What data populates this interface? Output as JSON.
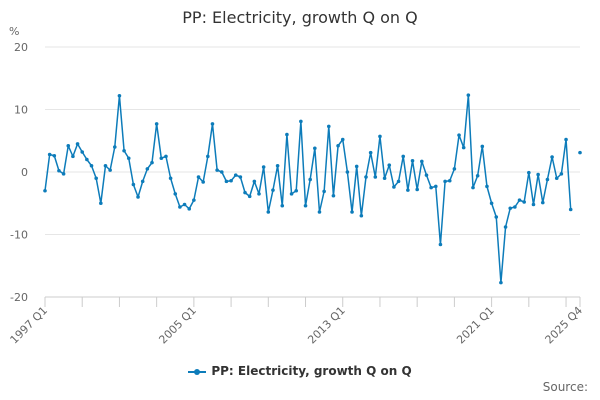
{
  "title": "PP: Electricity, growth Q on Q",
  "source_label": "Source:",
  "colors": {
    "series": "#0d7cba",
    "grid": "#e6e6e6",
    "axis": "#cccccc"
  },
  "chart_data": {
    "type": "line",
    "title": "PP: Electricity, growth Q on Q",
    "ylabel": "%",
    "xlabel": "",
    "ylim": [
      -20,
      20
    ],
    "yticks": [
      20,
      10,
      0,
      -10,
      -20
    ],
    "x_start": "1997 Q1",
    "x_end": "2025 Q4",
    "xtick_labels": [
      "1997 Q1",
      "2005 Q1",
      "2013 Q1",
      "2021 Q1",
      "2025 Q4"
    ],
    "legend": "bottom-center",
    "grid": "horizontal",
    "series": [
      {
        "name": "PP: Electricity, growth Q on Q",
        "values": [
          -3.0,
          2.8,
          2.6,
          0.2,
          -0.3,
          4.2,
          2.5,
          4.5,
          3.2,
          2.0,
          1.0,
          -1.0,
          -5.0,
          1.0,
          0.3,
          4.0,
          12.2,
          3.4,
          2.2,
          -2.0,
          -4.0,
          -1.5,
          0.5,
          1.5,
          7.7,
          2.2,
          2.5,
          -1.0,
          -3.5,
          -5.6,
          -5.2,
          -5.9,
          -4.5,
          -0.8,
          -1.6,
          2.5,
          7.7,
          0.3,
          0.0,
          -1.5,
          -1.4,
          -0.5,
          -0.8,
          -3.3,
          -3.9,
          -1.5,
          -3.5,
          0.8,
          -6.4,
          -2.9,
          1.0,
          -5.4,
          6.0,
          -3.5,
          -3.0,
          8.1,
          -5.4,
          -1.2,
          3.8,
          -6.4,
          -3.1,
          7.3,
          -3.8,
          4.2,
          5.2,
          0.0,
          -6.4,
          0.9,
          -7.0,
          -0.8,
          3.1,
          -0.8,
          5.7,
          -1.0,
          1.1,
          -2.4,
          -1.5,
          2.5,
          -2.9,
          1.8,
          -2.8,
          1.7,
          -0.5,
          -2.5,
          -2.3,
          -11.6,
          -1.5,
          -1.4,
          0.5,
          5.9,
          3.9,
          12.3,
          -2.5,
          -0.6,
          4.1,
          -2.3,
          -5.0,
          -7.2,
          -17.7,
          -8.8,
          -5.8,
          -5.6,
          -4.5,
          -4.8,
          -0.1,
          -5.2,
          -0.4,
          -4.9,
          -1.2,
          2.4,
          -1.0,
          -0.3,
          5.2,
          -6.0,
          null,
          3.1
        ]
      }
    ]
  }
}
